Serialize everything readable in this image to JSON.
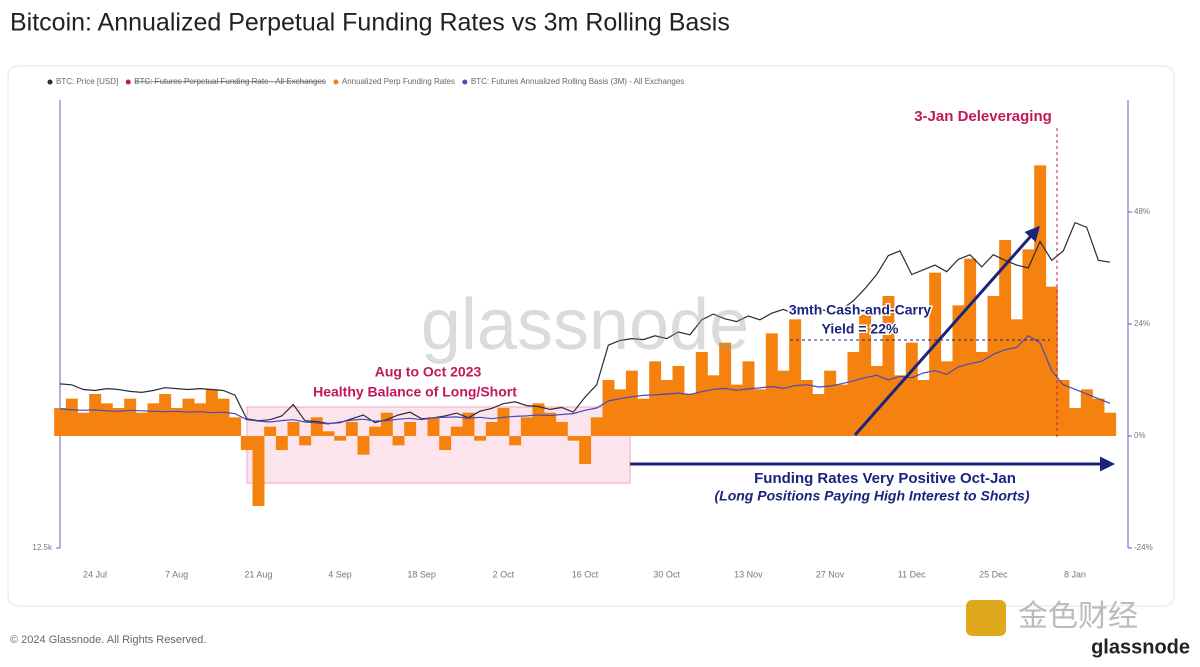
{
  "chart_data": {
    "type": "combo",
    "title": "Bitcoin: Annualized Perpetual Funding Rates vs 3m Rolling Basis",
    "categories": [
      null,
      null,
      null,
      "24 Jul",
      null,
      null,
      null,
      null,
      null,
      null,
      "7 Aug",
      null,
      null,
      null,
      null,
      null,
      null,
      "21 Aug",
      null,
      null,
      null,
      null,
      null,
      null,
      "4 Sep",
      null,
      null,
      null,
      null,
      null,
      null,
      "18 Sep",
      null,
      null,
      null,
      null,
      null,
      null,
      "2 Oct",
      null,
      null,
      null,
      null,
      null,
      null,
      "16 Oct",
      null,
      null,
      null,
      null,
      null,
      null,
      "30 Oct",
      null,
      null,
      null,
      null,
      null,
      null,
      "13 Nov",
      null,
      null,
      null,
      null,
      null,
      null,
      "27 Nov",
      null,
      null,
      null,
      null,
      null,
      null,
      "11 Dec",
      null,
      null,
      null,
      null,
      null,
      null,
      "25 Dec",
      null,
      null,
      null,
      null,
      null,
      null,
      "8 Jan",
      null,
      null,
      null
    ],
    "ylim": [
      12500,
      60000
    ],
    "yticks": [
      {
        "value": 12500,
        "label": "12.5k"
      }
    ],
    "y2lim": [
      -24,
      72
    ],
    "y2ticks": [
      {
        "value": 48,
        "label": "48%"
      },
      {
        "value": 24,
        "label": "24%"
      },
      {
        "value": 0,
        "label": "0%"
      },
      {
        "value": -24,
        "label": "-24%"
      }
    ],
    "series": [
      {
        "name": "BTC: Price [USD]",
        "type": "line",
        "color": "#2b2b3a",
        "values": [
          29900,
          29800,
          29300,
          29200,
          29400,
          29300,
          29100,
          29000,
          29200,
          29500,
          29400,
          29300,
          29400,
          29300,
          29200,
          28700,
          26200,
          26000,
          26100,
          26500,
          27700,
          26000,
          25900,
          25700,
          25800,
          26200,
          26600,
          25800,
          26100,
          26600,
          26900,
          26200,
          26300,
          26500,
          26800,
          26300,
          27000,
          27300,
          27800,
          28000,
          27600,
          27500,
          27200,
          27400,
          26900,
          28500,
          29800,
          34000,
          34500,
          34700,
          34600,
          35000,
          34700,
          35400,
          35100,
          36700,
          37300,
          36800,
          36500,
          37100,
          36700,
          37400,
          37800,
          37300,
          37600,
          37900,
          37500,
          37800,
          38700,
          40000,
          41500,
          43500,
          44000,
          41500,
          42000,
          42500,
          41800,
          43100,
          43600,
          42300,
          43600,
          43000,
          42500,
          42200,
          45000,
          43000,
          44000,
          47000,
          46500,
          43000,
          42800
        ]
      },
      {
        "name": "Annualized Perp Funding Rates",
        "type": "bar",
        "axis": "y2",
        "color": "#f5820f",
        "values": [
          6,
          8,
          5,
          9,
          7,
          6,
          8,
          5,
          7,
          9,
          6,
          8,
          7,
          10,
          8,
          4,
          -3,
          -15,
          2,
          -3,
          3,
          -2,
          4,
          1,
          -1,
          3,
          -4,
          2,
          5,
          -2,
          3,
          0,
          4,
          -3,
          2,
          5,
          -1,
          3,
          6,
          -2,
          4,
          7,
          5,
          3,
          -1,
          -6,
          4,
          12,
          10,
          14,
          8,
          16,
          12,
          15,
          9,
          18,
          13,
          20,
          11,
          16,
          10,
          22,
          14,
          25,
          12,
          9,
          14,
          11,
          18,
          26,
          15,
          30,
          13,
          20,
          12,
          35,
          16,
          28,
          38,
          18,
          30,
          42,
          25,
          40,
          58,
          32,
          12,
          6,
          10,
          8,
          5
        ]
      },
      {
        "name": "BTC: Futures Annualized Rolling Basis (3M) - All Exchanges",
        "type": "line",
        "axis": "y2",
        "color": "#4a4ab8",
        "values": [
          5.8,
          5.6,
          5.5,
          5.6,
          5.4,
          5.3,
          5.5,
          5.4,
          5.3,
          5.2,
          5.3,
          5.1,
          5.2,
          5.0,
          5.1,
          4.8,
          3.5,
          3.2,
          3.0,
          3.3,
          3.5,
          3.0,
          2.8,
          2.6,
          3.0,
          3.4,
          3.6,
          3.2,
          3.3,
          3.6,
          3.8,
          3.5,
          3.9,
          4.0,
          4.1,
          3.8,
          4.0,
          3.7,
          4.0,
          4.2,
          4.3,
          4.5,
          4.4,
          4.6,
          4.8,
          5.5,
          6.0,
          7.5,
          8.0,
          8.4,
          8.7,
          8.8,
          9.0,
          9.2,
          8.9,
          9.5,
          10.0,
          10.2,
          9.8,
          10.1,
          10.3,
          10.6,
          10.2,
          10.8,
          11.0,
          10.5,
          10.7,
          11.2,
          11.8,
          12.5,
          13.0,
          12.0,
          12.8,
          12.5,
          13.5,
          14.0,
          13.2,
          14.8,
          15.5,
          16.0,
          17.5,
          18.5,
          19.0,
          21.5,
          20.0,
          14.0,
          11.0,
          10.0,
          9.0,
          8.0,
          7.0
        ]
      }
    ],
    "hidden_series": [
      {
        "name": "BTC: Futures Perpetual Funding Rate - All Exchanges",
        "color": "#c2185b"
      }
    ],
    "annotations": [
      "3-Jan Deleveraging",
      "Aug to Oct 2023",
      "Healthy Balance of Long/Short",
      "3mth Cash-and-Carry",
      "Yield = 22%",
      "Funding Rates Very Positive Oct-Jan",
      "(Long Positions Paying High Interest to Shorts)"
    ],
    "watermark": "glassnode"
  },
  "footer": {
    "copyright": "© 2024 Glassnode. All Rights Reserved.",
    "logo_text": "金色财经",
    "brand": "glassnode"
  }
}
